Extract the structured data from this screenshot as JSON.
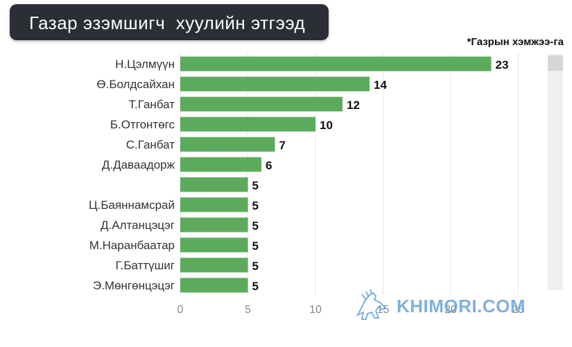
{
  "title": "Газар эзэмшигч  хуулийн этгээд",
  "unit_note": "*Газрын хэмжээ-га",
  "watermark": {
    "text": "KHIMORI.COM",
    "icon": "horse-logo-icon"
  },
  "colors": {
    "bar": "#5cab5c",
    "banner": "#2b2e35",
    "scrollbar": "#efefef",
    "grid": "#e6e6e6"
  },
  "chart_data": {
    "type": "bar",
    "orientation": "horizontal",
    "categories": [
      "Н.Цэлмүүн",
      "Ө.Болдсайхан",
      "Т.Ганбат",
      "Б.Отгонтөгс",
      "С.Ганбат",
      "Д.Даваадорж",
      "",
      "Ц.Баяннамсрай",
      "Д.Алтанцэцэг",
      "М.Наранбаатар",
      "Г.Баттүшиг",
      "Э.Мөнгөнцэцэг"
    ],
    "values": [
      23,
      14,
      12,
      10,
      7,
      6,
      5,
      5,
      5,
      5,
      5,
      5
    ],
    "xticks": [
      0,
      5,
      10,
      15,
      20,
      25
    ],
    "xlim": [
      0,
      26.5
    ],
    "grid": true,
    "data_labels": true
  }
}
